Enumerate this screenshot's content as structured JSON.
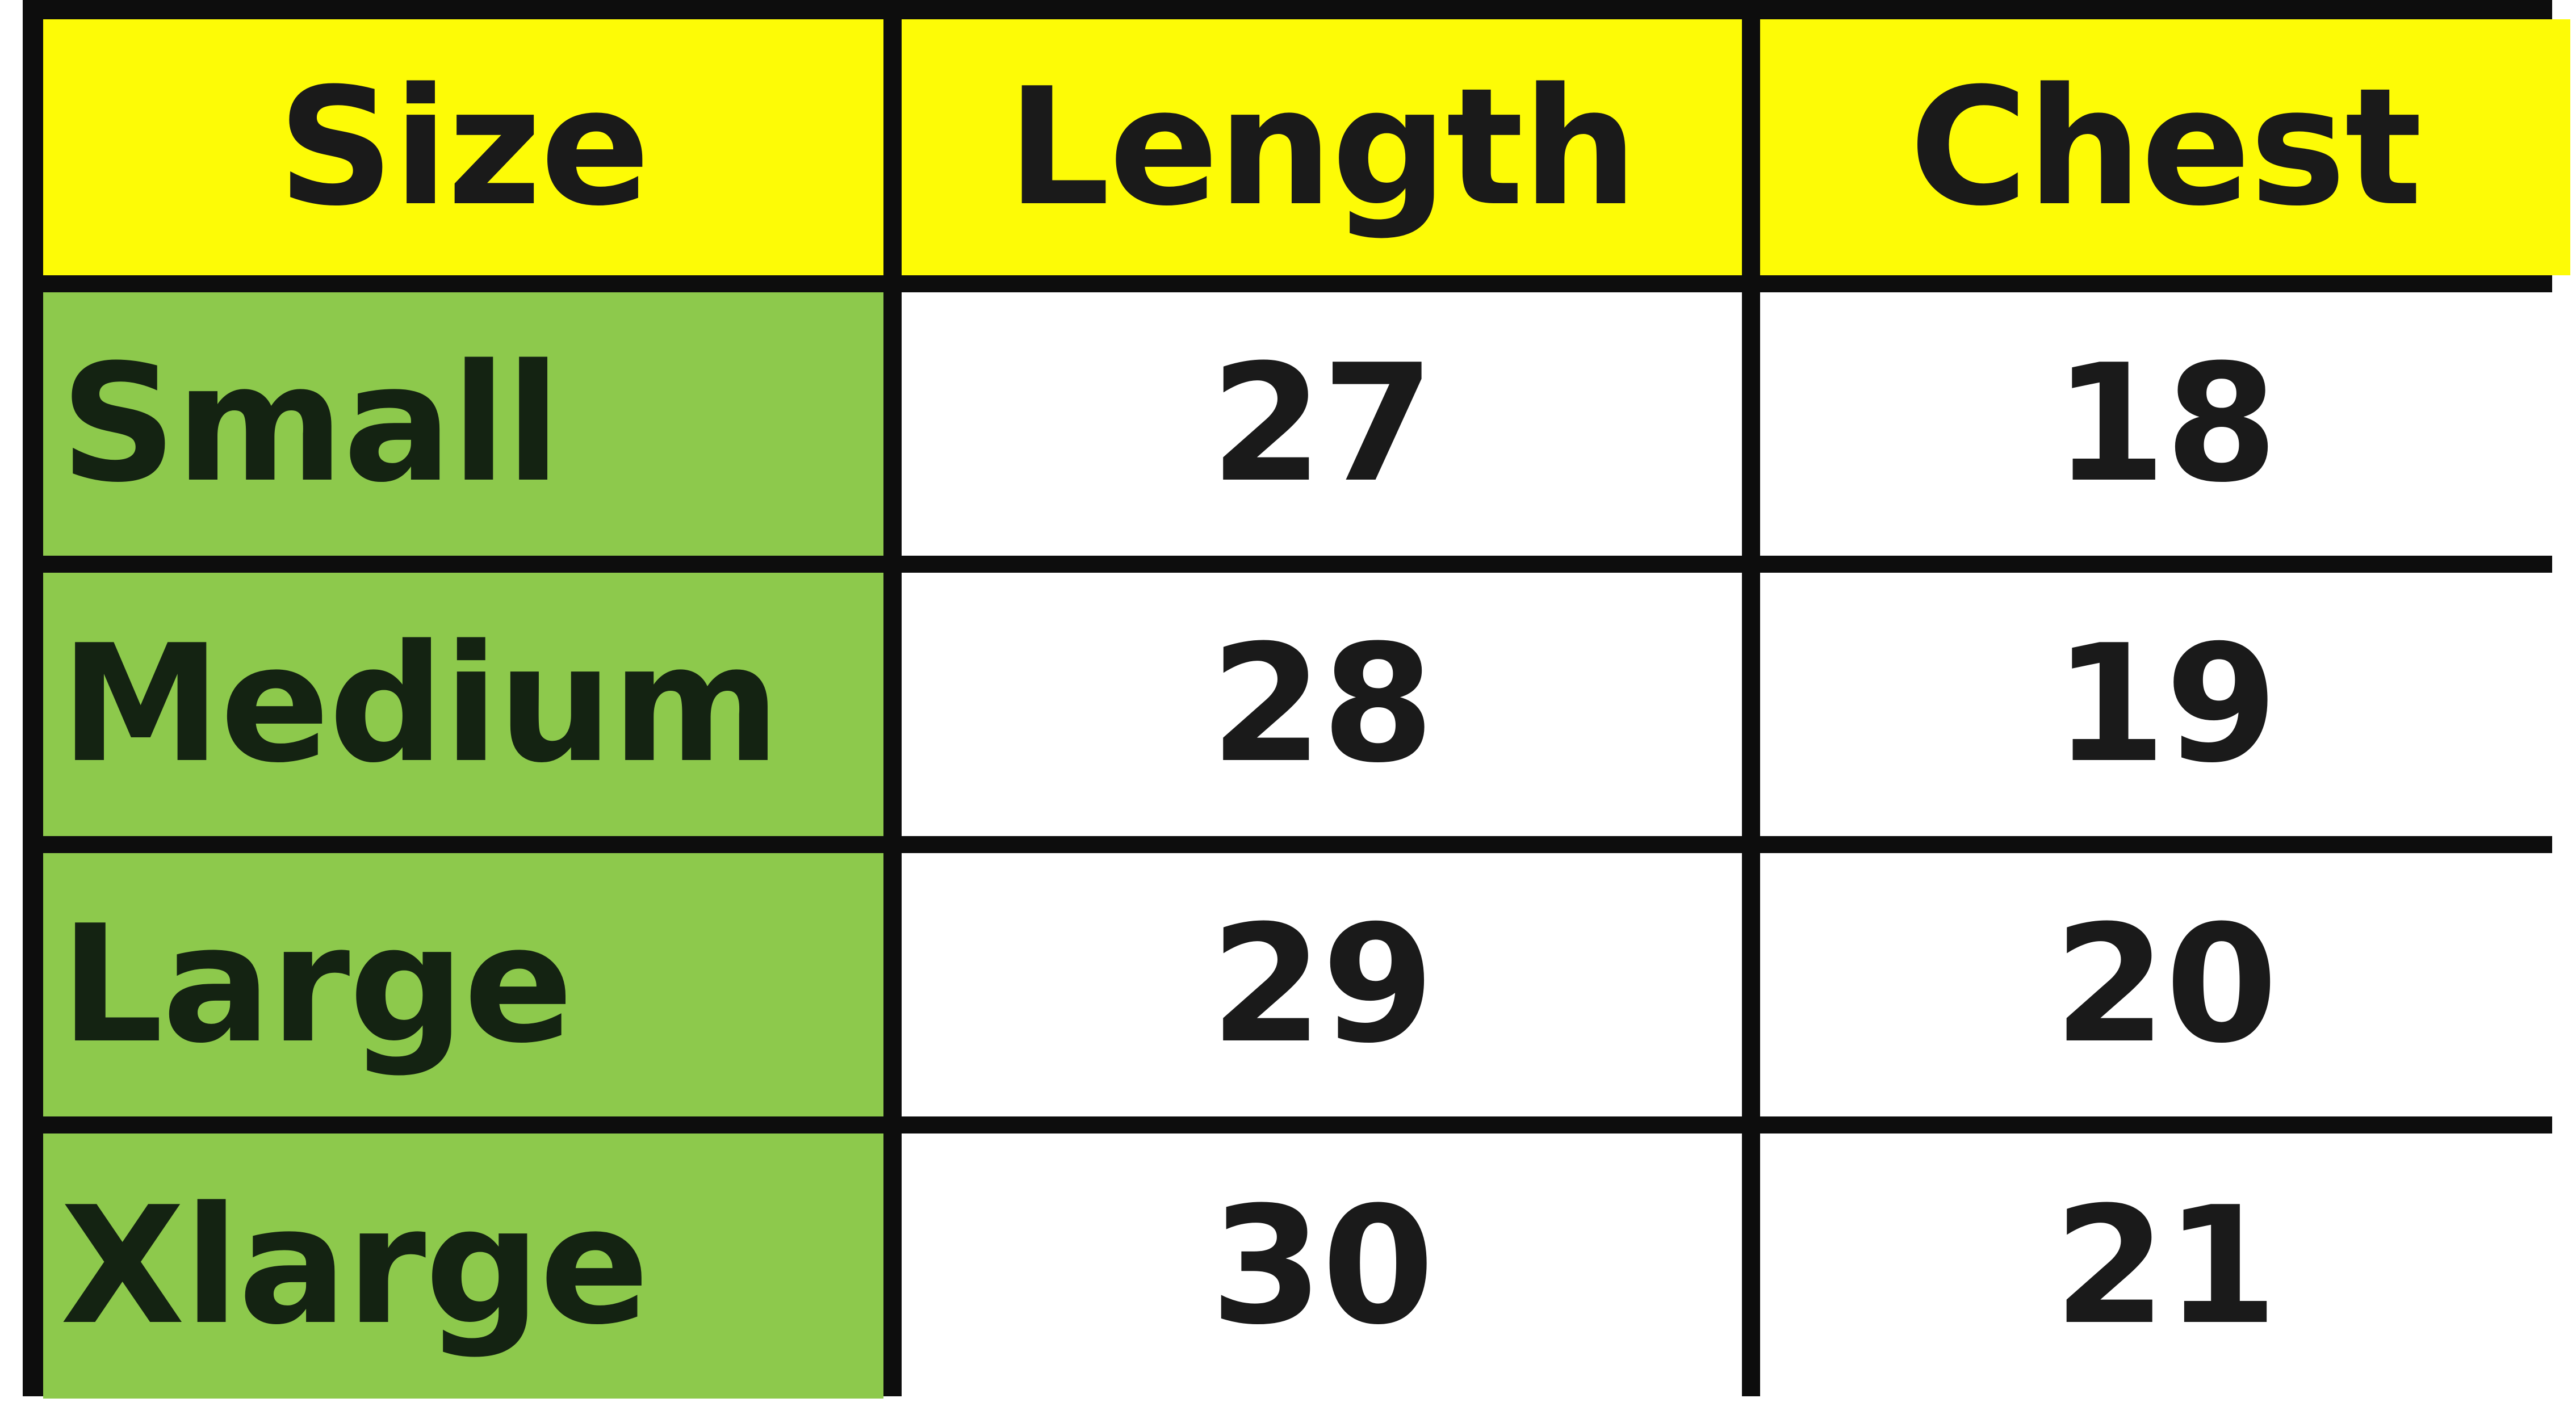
{
  "table": {
    "headers": [
      "Size",
      "Length",
      "Chest"
    ],
    "rows": [
      {
        "size": "Small",
        "length": "27",
        "chest": "18"
      },
      {
        "size": "Medium",
        "length": "28",
        "chest": "19"
      },
      {
        "size": "Large",
        "length": "29",
        "chest": "20"
      },
      {
        "size": "Xlarge",
        "length": "30",
        "chest": "21"
      }
    ]
  },
  "colors": {
    "header_background": "#fdfb06",
    "size_column_background": "#8dc94c",
    "value_background": "#ffffff",
    "grid_lines": "#0d0d0d"
  }
}
